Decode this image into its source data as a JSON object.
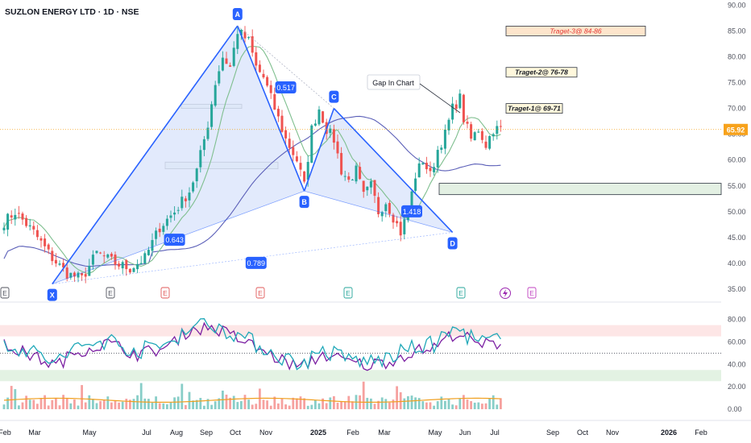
{
  "title": "SUZLON ENERGY LTD · 1D · NSE",
  "current_price": "65.92",
  "colors": {
    "up": "#26a69a",
    "down": "#ef5350",
    "pattern_line": "#2962ff",
    "pattern_fill": "#dde6fb",
    "ma_fast": "#7fbf8f",
    "ma_slow": "#5b5fb8",
    "rsi_1": "#1fa8b8",
    "rsi_2": "#7b1fa2",
    "volume_ma": "#f0a020",
    "price_tag": "#f7a21b",
    "zone_fill": "#e3f0e3",
    "target_fill": "#fff8dc",
    "target3_fill": "#fde5cc",
    "target3_text": "#e53935"
  },
  "chart_data": [
    {
      "type": "candlestick",
      "title": "",
      "x_axis_ticks": [
        "Feb",
        "Mar",
        "May",
        "Jul",
        "Aug",
        "Sep",
        "Oct",
        "Nov",
        "2025",
        "Feb",
        "Mar",
        "May",
        "Jun",
        "Jul",
        "Sep",
        "Oct",
        "Nov",
        "2026",
        "Feb"
      ],
      "y_axis_ticks": [
        "90.00",
        "85.00",
        "80.00",
        "75.00",
        "70.00",
        "65.00",
        "60.00",
        "55.00",
        "50.00",
        "45.00",
        "40.00",
        "35.00"
      ],
      "ylim": [
        32.5,
        91
      ],
      "price_anchors": [
        [
          0,
          48
        ],
        [
          3,
          50
        ],
        [
          8,
          46
        ],
        [
          13,
          41
        ],
        [
          17,
          38
        ],
        [
          21,
          37
        ],
        [
          25,
          42
        ],
        [
          30,
          40
        ],
        [
          34,
          39
        ],
        [
          38,
          41
        ],
        [
          42,
          47
        ],
        [
          46,
          50
        ],
        [
          50,
          54
        ],
        [
          52,
          58
        ],
        [
          55,
          67
        ],
        [
          57,
          75
        ],
        [
          59,
          80
        ],
        [
          61,
          78
        ],
        [
          63,
          85
        ],
        [
          66,
          83
        ],
        [
          68,
          78
        ],
        [
          70,
          76
        ],
        [
          72,
          72
        ],
        [
          74,
          68
        ],
        [
          76,
          64
        ],
        [
          79,
          60
        ],
        [
          81,
          55
        ],
        [
          83,
          66
        ],
        [
          85,
          70
        ],
        [
          87,
          66
        ],
        [
          89,
          64
        ],
        [
          91,
          58
        ],
        [
          93,
          56
        ],
        [
          95,
          58
        ],
        [
          97,
          53
        ],
        [
          99,
          55
        ],
        [
          101,
          50
        ],
        [
          103,
          52
        ],
        [
          105,
          49
        ],
        [
          107,
          46
        ],
        [
          109,
          50
        ],
        [
          111,
          57
        ],
        [
          113,
          60
        ],
        [
          115,
          57
        ],
        [
          117,
          62
        ],
        [
          119,
          65
        ],
        [
          121,
          70
        ],
        [
          123,
          72
        ],
        [
          124,
          68
        ],
        [
          126,
          64
        ],
        [
          128,
          66
        ],
        [
          130,
          63
        ],
        [
          132,
          66
        ],
        [
          134,
          66
        ]
      ],
      "harmonic_points": [
        {
          "label": "X",
          "i": 13,
          "price": 36
        },
        {
          "label": "A",
          "i": 63,
          "price": 86
        },
        {
          "label": "B",
          "i": 81,
          "price": 54
        },
        {
          "label": "C",
          "i": 89,
          "price": 70
        },
        {
          "label": "D",
          "i": 121,
          "price": 46
        }
      ],
      "ratios": [
        {
          "text": "0.517",
          "i": 76,
          "price": 74
        },
        {
          "text": "0.643",
          "i": 46,
          "price": 44.5
        },
        {
          "text": "0.789",
          "i": 68,
          "price": 40
        },
        {
          "text": "1.418",
          "i": 110,
          "price": 50
        }
      ],
      "targets": [
        {
          "text": "Traget-3@ 84-86",
          "level": 85
        },
        {
          "text": "Traget-2@ 76-78",
          "level": 77
        },
        {
          "text": "Traget-1@ 69-71",
          "level": 70
        }
      ],
      "annotation": "Gap In Chart",
      "earnings_markers": [
        "E",
        "E",
        "E",
        "E",
        "E",
        "E",
        "E"
      ],
      "dividend_icon": "lightning-icon"
    },
    {
      "type": "line",
      "title": "",
      "y_axis_ticks": [
        "80.00",
        "60.00",
        "40.00",
        "20.00",
        "0.00"
      ],
      "ylim": [
        -5,
        92
      ],
      "band_upper": [
        65,
        75
      ],
      "band_lower": [
        25,
        35
      ],
      "midline": 50,
      "series": [
        {
          "values_anchor": [
            [
              0,
              60
            ],
            [
              8,
              50
            ],
            [
              14,
              42
            ],
            [
              20,
              55
            ],
            [
              28,
              62
            ],
            [
              36,
              52
            ],
            [
              44,
              58
            ],
            [
              50,
              74
            ],
            [
              56,
              76
            ],
            [
              62,
              68
            ],
            [
              68,
              58
            ],
            [
              74,
              48
            ],
            [
              80,
              40
            ],
            [
              86,
              52
            ],
            [
              92,
              46
            ],
            [
              98,
              42
            ],
            [
              104,
              46
            ],
            [
              110,
              54
            ],
            [
              116,
              58
            ],
            [
              122,
              72
            ],
            [
              128,
              60
            ],
            [
              134,
              62
            ]
          ]
        }
      ]
    }
  ]
}
